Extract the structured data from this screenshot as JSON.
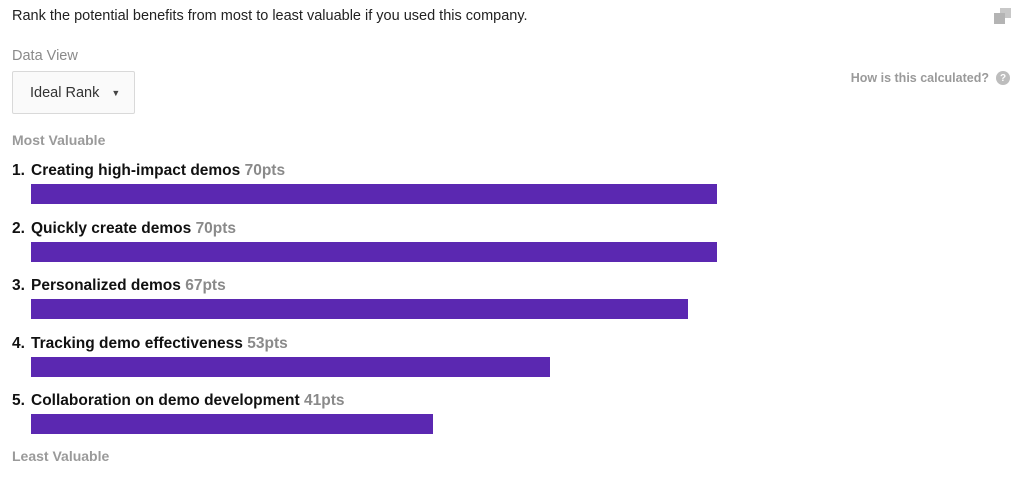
{
  "question": "Rank the potential benefits from most to least valuable if you used this company.",
  "icons": {
    "copy": "copy-icon",
    "help": "help-icon",
    "dropdown_caret": "caret-down-icon"
  },
  "data_view": {
    "label": "Data View",
    "selected": "Ideal Rank",
    "caret": "▼"
  },
  "help_link": {
    "label": "How is this calculated?",
    "icon_text": "?"
  },
  "labels": {
    "most": "Most Valuable",
    "least": "Least Valuable"
  },
  "colors": {
    "bar": "#5b28b1"
  },
  "chart_data": {
    "type": "bar",
    "orientation": "horizontal",
    "max_value": 70,
    "items": [
      {
        "rank": "1.",
        "label": "Creating high-impact demos",
        "value": 70,
        "pts_label": "70pts"
      },
      {
        "rank": "2.",
        "label": "Quickly create demos",
        "value": 70,
        "pts_label": "70pts"
      },
      {
        "rank": "3.",
        "label": "Personalized demos",
        "value": 67,
        "pts_label": "67pts"
      },
      {
        "rank": "4.",
        "label": "Tracking demo effectiveness",
        "value": 53,
        "pts_label": "53pts"
      },
      {
        "rank": "5.",
        "label": "Collaboration on demo development",
        "value": 41,
        "pts_label": "41pts"
      }
    ]
  }
}
